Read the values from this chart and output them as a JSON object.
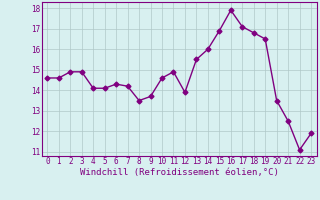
{
  "x": [
    0,
    1,
    2,
    3,
    4,
    5,
    6,
    7,
    8,
    9,
    10,
    11,
    12,
    13,
    14,
    15,
    16,
    17,
    18,
    19,
    20,
    21,
    22,
    23
  ],
  "y": [
    14.6,
    14.6,
    14.9,
    14.9,
    14.1,
    14.1,
    14.3,
    14.2,
    13.5,
    13.7,
    14.6,
    14.9,
    13.9,
    15.5,
    16.0,
    16.9,
    17.9,
    17.1,
    16.8,
    16.5,
    13.5,
    12.5,
    11.1,
    11.9
  ],
  "line_color": "#800080",
  "marker": "D",
  "marker_size": 2.5,
  "bg_color": "#d8f0f0",
  "grid_color": "#b0c8c8",
  "xlabel": "Windchill (Refroidissement éolien,°C)",
  "xlabel_color": "#800080",
  "ylim_min": 10.8,
  "ylim_max": 18.3,
  "xlim_min": -0.5,
  "xlim_max": 23.5,
  "yticks": [
    11,
    12,
    13,
    14,
    15,
    16,
    17,
    18
  ],
  "xticks": [
    0,
    1,
    2,
    3,
    4,
    5,
    6,
    7,
    8,
    9,
    10,
    11,
    12,
    13,
    14,
    15,
    16,
    17,
    18,
    19,
    20,
    21,
    22,
    23
  ],
  "tick_color": "#800080",
  "tick_fontsize": 5.5,
  "xlabel_fontsize": 6.5,
  "line_width": 1.0
}
